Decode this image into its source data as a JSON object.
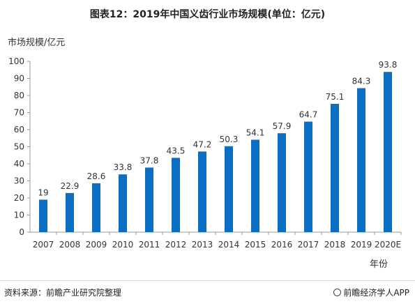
{
  "header": {
    "title": "图表12：2019年中国义齿行业市场规模(单位：亿元)"
  },
  "footer": {
    "source": "资料来源：前瞻产业研究院整理",
    "brand": "前瞻经济学人APP",
    "brand_icon": "brand-logo-icon"
  },
  "colors": {
    "bar": "#0a6fc2",
    "axis": "#999999",
    "text": "#333333"
  },
  "chart_data": {
    "type": "bar",
    "title": "图表12：2019年中国义齿行业市场规模(单位：亿元)",
    "ylabel": "市场规模/亿元",
    "xlabel": "年份",
    "categories": [
      "2007",
      "2008",
      "2009",
      "2010",
      "2011",
      "2012",
      "2013",
      "2014",
      "2015",
      "2016",
      "2017",
      "2018",
      "2019",
      "2020E"
    ],
    "series": [
      {
        "values": [
          19,
          22.9,
          28.6,
          33.8,
          37.8,
          43.5,
          47.2,
          50.3,
          54.1,
          57.9,
          64.7,
          75.1,
          84.3,
          93.8
        ],
        "labels": [
          "19",
          "22.9",
          "28.6",
          "33.8",
          "37.8",
          "43.5",
          "47.2",
          "50.3",
          "54.1",
          "57.9",
          "64.7",
          "75.1",
          "84.3",
          "93.8"
        ]
      }
    ],
    "ylim": [
      0,
      100
    ],
    "yticks": [
      0,
      10,
      20,
      30,
      40,
      50,
      60,
      70,
      80,
      90,
      100
    ],
    "grid": false,
    "legend": "none"
  }
}
